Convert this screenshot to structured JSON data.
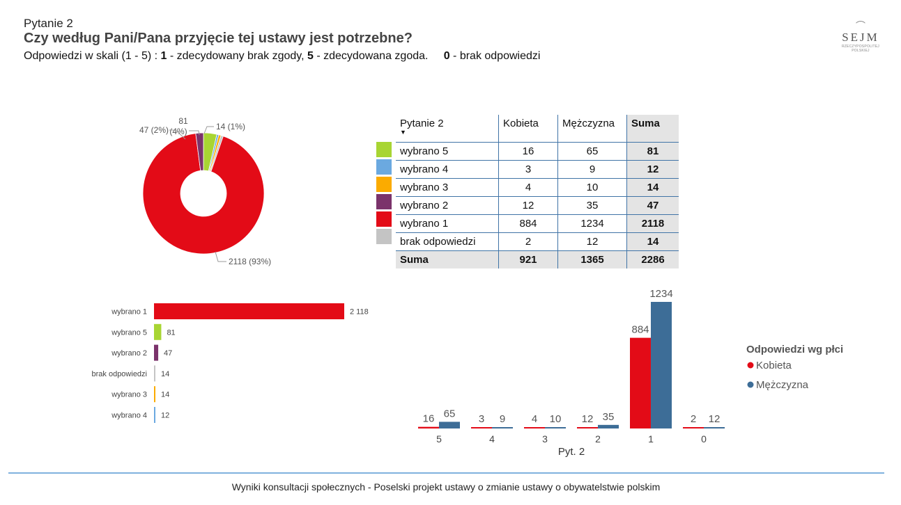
{
  "header": {
    "question_label": "Pytanie 2",
    "question_title": "Czy według Pani/Pana przyjęcie tej ustawy jest potrzebne?",
    "scale_prefix": "Odpowiedzi w skali (1 - 5) :  ",
    "scale_one": "1",
    "scale_one_text": " - zdecydowany brak zgody, ",
    "scale_five": "5",
    "scale_five_text": " - zdecydowana zgoda.     ",
    "scale_zero": "0",
    "scale_zero_text": " - brak odpowiedzi"
  },
  "logo": {
    "word": "SEJM",
    "subtitle": "RZECZYPOSPOLITEJ POLSKIEJ"
  },
  "colors": {
    "wybrano5": "#a8d533",
    "wybrano4": "#6ba9e0",
    "wybrano3": "#fbab00",
    "wybrano2": "#7b336b",
    "wybrano1": "#e30b17",
    "brak": "#c4c4c4",
    "kobieta": "#e30b17",
    "mezczyzna": "#3d6d97"
  },
  "table": {
    "headers": [
      "Pytanie 2",
      "Kobieta",
      "Mężczyzna",
      "Suma"
    ],
    "rows": [
      {
        "label": "wybrano 5",
        "k": "16",
        "m": "65",
        "s": "81"
      },
      {
        "label": "wybrano 4",
        "k": "3",
        "m": "9",
        "s": "12"
      },
      {
        "label": "wybrano 3",
        "k": "4",
        "m": "10",
        "s": "14"
      },
      {
        "label": "wybrano 2",
        "k": "12",
        "m": "35",
        "s": "47"
      },
      {
        "label": "wybrano 1",
        "k": "884",
        "m": "1234",
        "s": "2118"
      },
      {
        "label": "brak odpowiedzi",
        "k": "2",
        "m": "12",
        "s": "14"
      }
    ],
    "total": {
      "label": "Suma",
      "k": "921",
      "m": "1365",
      "s": "2286"
    }
  },
  "chart_data": [
    {
      "type": "pie",
      "title": "",
      "slices": [
        {
          "name": "wybrano 5",
          "value": 81,
          "label": "81 (4%)",
          "color": "#a8d533"
        },
        {
          "name": "wybrano 4",
          "value": 12,
          "label": "",
          "color": "#6ba9e0"
        },
        {
          "name": "wybrano 3",
          "value": 14,
          "label": "14 (1%)",
          "color": "#fbab00"
        },
        {
          "name": "brak odpowiedzi",
          "value": 14,
          "label": "",
          "color": "#c4c4c4"
        },
        {
          "name": "wybrano 1",
          "value": 2118,
          "label": "2118 (93%)",
          "color": "#e30b17"
        },
        {
          "name": "wybrano 2",
          "value": 47,
          "label": "47 (2%)",
          "color": "#7b336b"
        }
      ]
    },
    {
      "type": "bar",
      "orientation": "horizontal",
      "categories": [
        "wybrano 1",
        "wybrano 5",
        "wybrano 2",
        "brak odpowiedzi",
        "wybrano 3",
        "wybrano 4"
      ],
      "values": [
        2118,
        81,
        47,
        14,
        14,
        12
      ],
      "value_labels": [
        "2 118",
        "81",
        "47",
        "14",
        "14",
        "12"
      ],
      "colors": [
        "#e30b17",
        "#a8d533",
        "#7b336b",
        "#c4c4c4",
        "#fbab00",
        "#6ba9e0"
      ]
    },
    {
      "type": "bar",
      "orientation": "vertical",
      "xlabel": "Pyt. 2",
      "categories": [
        "5",
        "4",
        "3",
        "2",
        "1",
        "0"
      ],
      "series": [
        {
          "name": "Kobieta",
          "values": [
            16,
            3,
            4,
            12,
            884,
            2
          ]
        },
        {
          "name": "Mężczyzna",
          "values": [
            65,
            9,
            10,
            35,
            1234,
            12
          ]
        }
      ],
      "legend_title": "Odpowiedzi wg płci",
      "legend_position": "right",
      "ylim": [
        0,
        1234
      ]
    }
  ],
  "footer": "Wyniki konsultacji społecznych - Poselski projekt ustawy o zmianie ustawy o obywatelstwie polskim"
}
